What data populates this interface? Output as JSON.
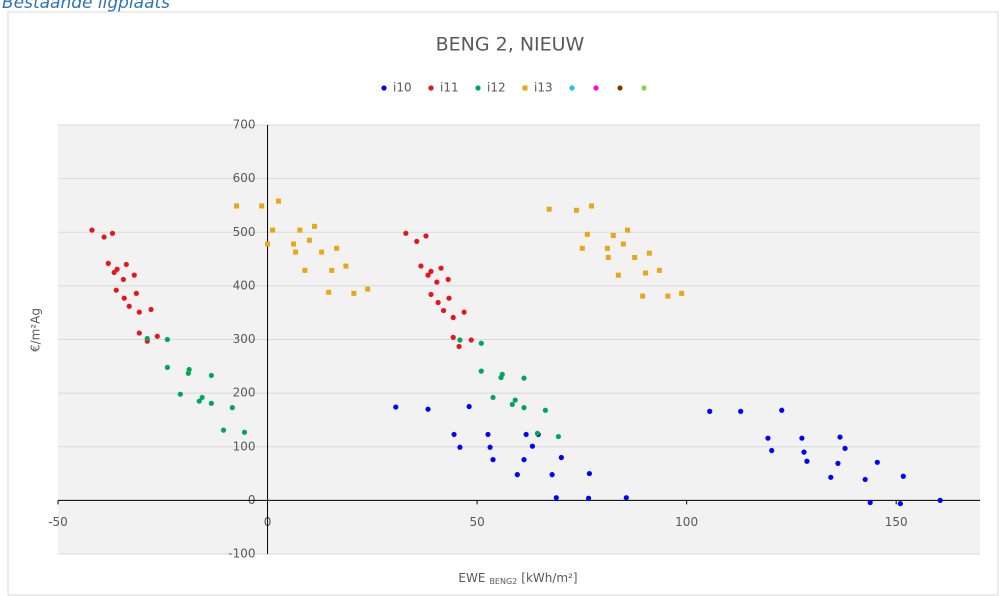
{
  "header": "Bestaande ligplaats",
  "chart_data": {
    "type": "scatter",
    "title": "BENG 2, NIEUW",
    "x_label": [
      "EWE",
      "BENG2",
      "[kWh/m²]"
    ],
    "y_label": "€/m²Ag",
    "xlim": [
      -50,
      170
    ],
    "xticks": [
      -50,
      0,
      50,
      100,
      150
    ],
    "ylim": [
      -100,
      700
    ],
    "yticks": [
      -100,
      0,
      100,
      200,
      300,
      400,
      500,
      600,
      700
    ],
    "grid": true,
    "legend": "top",
    "series": [
      {
        "name": "i10",
        "color": "#0000ff",
        "marker": "circle",
        "x": [
          30.6,
          38.3,
          48.1,
          44.5,
          45.9,
          52.6,
          53.1,
          53.8,
          61.7,
          63.2,
          61.2,
          59.6,
          64.6,
          70.1,
          67.9,
          76.8,
          68.9,
          76.6,
          85.6,
          105.5,
          112.9,
          122.7,
          119.4,
          120.3,
          127.5,
          128,
          128.7,
          136.6,
          137.8,
          136.1,
          134.4,
          145.5,
          142.6,
          151.7,
          143.8,
          151,
          160.5
        ],
        "values": [
          174,
          170,
          175,
          123,
          99,
          123,
          99,
          76,
          123,
          101,
          76,
          48,
          123,
          80,
          48,
          50,
          5,
          4,
          5,
          166,
          166,
          168,
          116,
          93,
          116,
          90,
          73,
          118,
          97,
          69,
          43,
          71,
          39,
          45,
          -4,
          -6,
          0
        ]
      },
      {
        "name": "i11",
        "color": "#e8141c",
        "marker": "circle",
        "x": [
          -41.9,
          -39,
          -37,
          -38,
          -36.6,
          -35.9,
          -33.7,
          -31.8,
          -34.4,
          -36.1,
          -31.3,
          -34.2,
          -33,
          -30.6,
          -27.8,
          -30.6,
          -28.7,
          -26.3,
          33,
          35.6,
          37.8,
          36.6,
          38.3,
          39,
          41.4,
          43.1,
          40.4,
          39,
          43.3,
          40.7,
          42,
          44.3,
          46.9,
          44.3,
          45.7,
          48.6
        ],
        "values": [
          504,
          491,
          498,
          442,
          425,
          431,
          440,
          420,
          412,
          392,
          386,
          377,
          362,
          351,
          356,
          312,
          297,
          306,
          498,
          483,
          493,
          437,
          420,
          427,
          433,
          412,
          407,
          384,
          377,
          369,
          354,
          341,
          351,
          304,
          287,
          299
        ]
      },
      {
        "name": "i12",
        "color": "#00a65a",
        "marker": "circle",
        "x": [
          -28.7,
          -23.9,
          -23.9,
          -18.7,
          -18.9,
          -20.8,
          -15.6,
          -16.3,
          -13.4,
          -13.4,
          -8.4,
          -10.5,
          -5.5,
          45.9,
          51,
          51,
          56,
          55.7,
          53.8,
          59.1,
          58.4,
          61.2,
          61.2,
          66.3,
          64.4,
          69.4
        ],
        "values": [
          302,
          300,
          248,
          244,
          237,
          198,
          192,
          185,
          233,
          181,
          173,
          131,
          127,
          299,
          293,
          241,
          235,
          229,
          192,
          187,
          179,
          228,
          173,
          168,
          125,
          119
        ]
      },
      {
        "name": "i13",
        "color": "#e6a817",
        "marker": "square",
        "x": [
          -7.4,
          -1.4,
          2.6,
          1.2,
          0,
          6.2,
          6.7,
          7.7,
          10,
          11.2,
          12.9,
          16.5,
          8.9,
          15.3,
          18.7,
          14.6,
          20.6,
          23.9,
          67.2,
          73.7,
          77.3,
          76.3,
          75.1,
          81.1,
          81.3,
          82.5,
          84.9,
          85.9,
          87.6,
          91.1,
          83.7,
          90.2,
          93.5,
          89.5,
          95.5,
          98.8
        ],
        "values": [
          549,
          549,
          558,
          504,
          478,
          478,
          463,
          504,
          485,
          511,
          463,
          470,
          429,
          429,
          437,
          388,
          386,
          394,
          543,
          541,
          549,
          496,
          470,
          470,
          453,
          494,
          478,
          504,
          453,
          461,
          420,
          424,
          429,
          381,
          381,
          386
        ]
      },
      {
        "color": "#1cc6e8",
        "marker": "circle",
        "x": [],
        "values": []
      },
      {
        "color": "#ff00ff",
        "marker": "circle",
        "x": [],
        "values": []
      },
      {
        "color": "#7b3f00",
        "marker": "circle",
        "x": [],
        "values": []
      },
      {
        "color": "#8fd14f",
        "marker": "circle",
        "x": [],
        "values": []
      }
    ]
  }
}
